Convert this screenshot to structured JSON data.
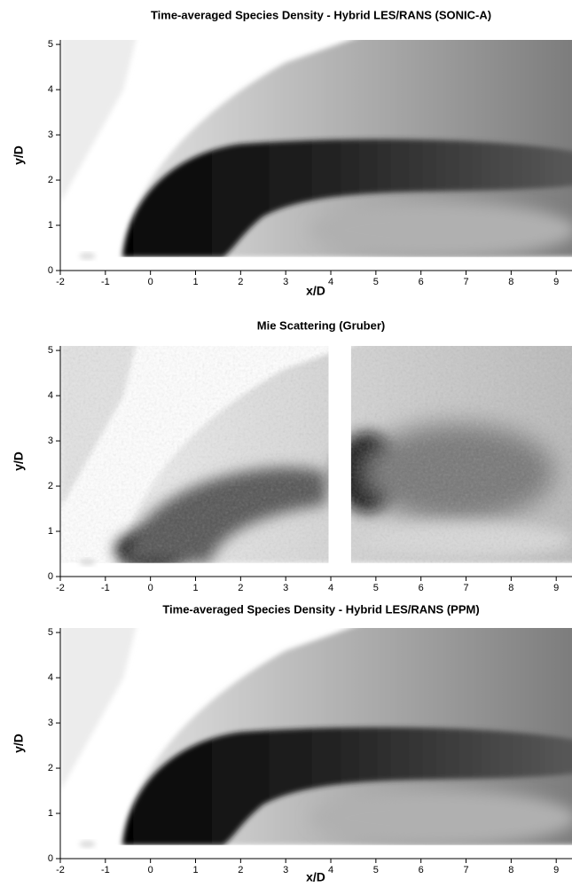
{
  "chart_data": [
    {
      "type": "heatmap",
      "title": "Time-averaged Species Density - Hybrid LES/RANS (SONIC-A)",
      "xlabel": "x/D",
      "ylabel": "y/D",
      "xlim": [
        -2,
        9.35
      ],
      "ylim": [
        0,
        5.1
      ],
      "xticks": [
        -2,
        -1,
        0,
        1,
        2,
        3,
        4,
        5,
        6,
        7,
        8,
        9
      ],
      "yticks": [
        0,
        1,
        2,
        3,
        4,
        5
      ]
    },
    {
      "type": "heatmap",
      "title": "Mie Scattering (Gruber)",
      "ylabel": "y/D",
      "xlim": [
        -2,
        9.35
      ],
      "ylim": [
        0,
        5.1
      ],
      "xticks": [
        -2,
        -1,
        0,
        1,
        2,
        3,
        4,
        5,
        6,
        7,
        8,
        9
      ],
      "yticks": [
        0,
        1,
        2,
        3,
        4,
        5
      ]
    },
    {
      "type": "heatmap",
      "title": "Time-averaged Species Density - Hybrid LES/RANS (PPM)",
      "xlabel": "x/D",
      "ylabel": "y/D",
      "xlim": [
        -2,
        9.35
      ],
      "ylim": [
        0,
        5.1
      ],
      "xticks": [
        -2,
        -1,
        0,
        1,
        2,
        3,
        4,
        5,
        6,
        7,
        8,
        9
      ],
      "yticks": [
        0,
        1,
        2,
        3,
        4,
        5
      ]
    }
  ]
}
